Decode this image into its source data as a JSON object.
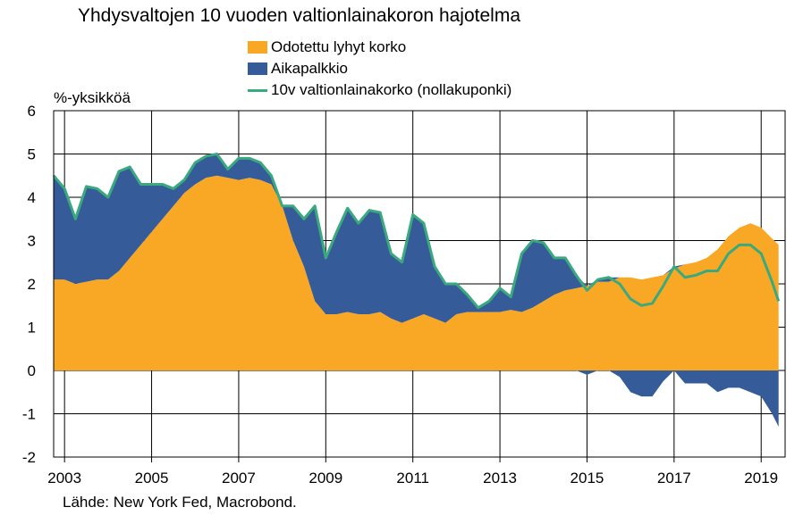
{
  "chart_data": {
    "type": "area",
    "title": "Yhdysvaltojen 10 vuoden valtionlainakoron hajotelma",
    "ylabel": "%-yksikköä",
    "ylim": [
      -2,
      6
    ],
    "xlim": [
      2002.75,
      2019.55
    ],
    "grid": true,
    "legend_position": "top-center",
    "x": [
      2002.75,
      2003.0,
      2003.25,
      2003.5,
      2003.75,
      2004.0,
      2004.25,
      2004.5,
      2004.75,
      2005.0,
      2005.25,
      2005.5,
      2005.75,
      2006.0,
      2006.25,
      2006.5,
      2006.75,
      2007.0,
      2007.25,
      2007.5,
      2007.75,
      2008.0,
      2008.25,
      2008.5,
      2008.75,
      2009.0,
      2009.25,
      2009.5,
      2009.75,
      2010.0,
      2010.25,
      2010.5,
      2010.75,
      2011.0,
      2011.25,
      2011.5,
      2011.75,
      2012.0,
      2012.25,
      2012.5,
      2012.75,
      2013.0,
      2013.25,
      2013.5,
      2013.75,
      2014.0,
      2014.25,
      2014.5,
      2014.75,
      2015.0,
      2015.25,
      2015.5,
      2015.75,
      2016.0,
      2016.25,
      2016.5,
      2016.75,
      2017.0,
      2017.25,
      2017.5,
      2017.75,
      2018.0,
      2018.25,
      2018.5,
      2018.75,
      2019.0,
      2019.25,
      2019.4
    ],
    "series": [
      {
        "name": "Odotettu lyhyt korko",
        "color": "#F9A825",
        "values": [
          2.1,
          2.1,
          2.0,
          2.05,
          2.1,
          2.1,
          2.3,
          2.6,
          2.9,
          3.2,
          3.5,
          3.8,
          4.1,
          4.3,
          4.45,
          4.5,
          4.45,
          4.4,
          4.45,
          4.4,
          4.3,
          3.8,
          3.0,
          2.4,
          1.6,
          1.3,
          1.3,
          1.35,
          1.3,
          1.3,
          1.35,
          1.2,
          1.1,
          1.2,
          1.3,
          1.2,
          1.1,
          1.3,
          1.35,
          1.35,
          1.35,
          1.35,
          1.4,
          1.35,
          1.45,
          1.6,
          1.75,
          1.85,
          1.9,
          1.95,
          2.05,
          2.05,
          2.15,
          2.15,
          2.1,
          2.15,
          2.2,
          2.35,
          2.45,
          2.5,
          2.6,
          2.8,
          3.1,
          3.3,
          3.4,
          3.3,
          3.05,
          2.9
        ]
      },
      {
        "name": "Aikapalkkio",
        "color": "#355C99",
        "values": [
          2.4,
          2.1,
          1.5,
          2.2,
          2.1,
          1.9,
          2.3,
          2.1,
          1.4,
          1.1,
          0.8,
          0.4,
          0.3,
          0.5,
          0.5,
          0.5,
          0.2,
          0.5,
          0.45,
          0.4,
          0.2,
          0.0,
          0.8,
          1.1,
          2.2,
          1.3,
          1.9,
          2.4,
          2.1,
          2.4,
          2.3,
          1.5,
          1.4,
          2.4,
          2.1,
          1.2,
          0.9,
          0.7,
          0.4,
          0.1,
          0.25,
          0.55,
          0.3,
          1.35,
          1.55,
          1.35,
          0.85,
          0.75,
          0.3,
          -0.1,
          0.05,
          0.1,
          -0.15,
          -0.5,
          -0.6,
          -0.6,
          -0.25,
          0.05,
          -0.3,
          -0.3,
          -0.3,
          -0.5,
          -0.4,
          -0.4,
          -0.5,
          -0.6,
          -1.0,
          -1.3
        ]
      },
      {
        "name": "10v valtionlainakorko (nollakuponki)",
        "color": "#3AAA7E",
        "values": [
          4.5,
          4.2,
          3.5,
          4.25,
          4.2,
          4.0,
          4.6,
          4.7,
          4.3,
          4.3,
          4.3,
          4.2,
          4.4,
          4.8,
          4.95,
          5.0,
          4.65,
          4.9,
          4.9,
          4.8,
          4.5,
          3.8,
          3.8,
          3.5,
          3.8,
          2.6,
          3.2,
          3.75,
          3.4,
          3.7,
          3.65,
          2.7,
          2.5,
          3.6,
          3.4,
          2.4,
          2.0,
          2.0,
          1.75,
          1.45,
          1.6,
          1.9,
          1.7,
          2.7,
          3.0,
          2.95,
          2.6,
          2.6,
          2.2,
          1.85,
          2.1,
          2.15,
          2.0,
          1.65,
          1.5,
          1.55,
          1.95,
          2.4,
          2.15,
          2.2,
          2.3,
          2.3,
          2.7,
          2.9,
          2.9,
          2.7,
          2.05,
          1.6
        ]
      }
    ],
    "y_ticks": [
      -2,
      -1,
      0,
      1,
      2,
      3,
      4,
      5,
      6
    ],
    "x_ticks": [
      2003,
      2005,
      2007,
      2009,
      2011,
      2013,
      2015,
      2017,
      2019
    ],
    "x_tick_labels": [
      "2003",
      "2005",
      "2007",
      "2009",
      "2011",
      "2013",
      "2015",
      "2017",
      "2019"
    ],
    "source": "Lähde: New York Fed, Macrobond."
  },
  "legend": {
    "items": [
      {
        "label": "Odotettu lyhyt korko"
      },
      {
        "label": "Aikapalkkio"
      },
      {
        "label": "10v valtionlainakorko (nollakuponki)"
      }
    ]
  }
}
